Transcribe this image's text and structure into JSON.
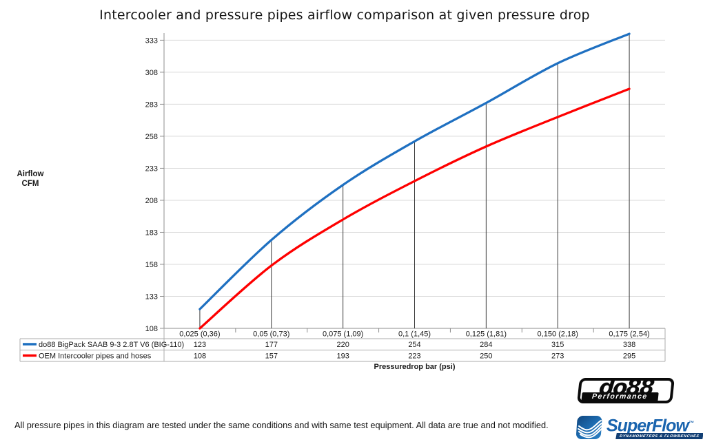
{
  "title": "Intercooler and pressure pipes airflow comparison at given pressure drop",
  "footer_note": "All pressure pipes in this diagram are tested under the same conditions and with same test equipment. All data are true and not modified.",
  "chart_data": {
    "type": "line",
    "title": "Intercooler and pressure pipes airflow comparison at given pressure drop",
    "xlabel": "Pressuredrop bar (psi)",
    "ylabel": "Airflow CFM",
    "ylabel_lines": [
      "Airflow",
      "CFM"
    ],
    "categories": [
      "0,025 (0,36)",
      "0,05 (0,73)",
      "0,075 (1,09)",
      "0,1 (1,45)",
      "0,125 (1,81)",
      "0,150 (2,18)",
      "0,175 (2,54)"
    ],
    "y_ticks": [
      108,
      133,
      158,
      183,
      208,
      233,
      258,
      283,
      308,
      333
    ],
    "ylim": [
      108,
      340
    ],
    "grid": "horizontal-only",
    "smooth_lines": true,
    "drop_lines_at_each_category": true,
    "legend_position": "data-table-left-column",
    "series": [
      {
        "name": "do88 BigPack SAAB 9-3 2.8T V6 (BIG-110)",
        "color": "#1F70C1",
        "values": [
          123,
          177,
          220,
          254,
          284,
          315,
          338
        ]
      },
      {
        "name": "OEM Intercooler pipes and hoses",
        "color": "#FE0000",
        "values": [
          108,
          157,
          193,
          223,
          250,
          273,
          295
        ]
      }
    ]
  },
  "logos": {
    "do88": {
      "text": "do88",
      "subtext": "Performance",
      "color": "#0B0B0B"
    },
    "superflow": {
      "text": "SuperFlow",
      "tm": "™",
      "subtext": "DYNAMOMETERS & FLOWBENCHES",
      "color": "#1A64AE",
      "bar_color": "#123F74"
    }
  }
}
